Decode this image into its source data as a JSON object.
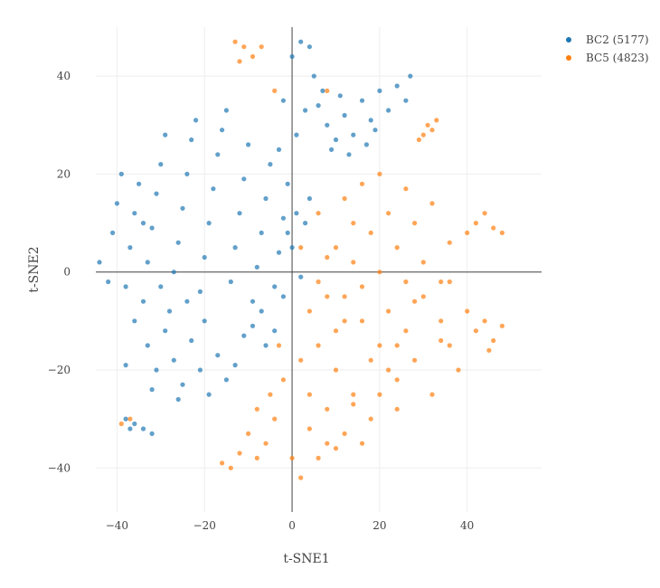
{
  "chart_data": {
    "type": "scatter",
    "xlabel": "t-SNE1",
    "ylabel": "t-SNE2",
    "xlim": [
      -50,
      57
    ],
    "ylim": [
      -49,
      50
    ],
    "x_ticks": [
      -40,
      -20,
      0,
      20,
      40
    ],
    "y_ticks": [
      -40,
      -20,
      0,
      20,
      40
    ],
    "x_tick_labels": [
      "−40",
      "−20",
      "0",
      "20",
      "40"
    ],
    "y_tick_labels": [
      "−40",
      "−20",
      "0",
      "20",
      "40"
    ],
    "grid": true,
    "zero_lines": true,
    "legend_position": "top-right",
    "series": [
      {
        "name": "BC2 (5177)",
        "color": "#1f77b4",
        "points": [
          [
            -44,
            2
          ],
          [
            -42,
            -2
          ],
          [
            -41,
            8
          ],
          [
            -40,
            14
          ],
          [
            -39,
            20
          ],
          [
            -38,
            -3
          ],
          [
            -37,
            5
          ],
          [
            -36,
            12
          ],
          [
            -35,
            18
          ],
          [
            -34,
            -6
          ],
          [
            -33,
            2
          ],
          [
            -32,
            9
          ],
          [
            -31,
            16
          ],
          [
            -30,
            22
          ],
          [
            -29,
            28
          ],
          [
            -28,
            -8
          ],
          [
            -27,
            0
          ],
          [
            -26,
            6
          ],
          [
            -25,
            13
          ],
          [
            -24,
            20
          ],
          [
            -23,
            27
          ],
          [
            -22,
            31
          ],
          [
            -21,
            -4
          ],
          [
            -20,
            3
          ],
          [
            -19,
            10
          ],
          [
            -18,
            17
          ],
          [
            -17,
            24
          ],
          [
            -16,
            29
          ],
          [
            -15,
            33
          ],
          [
            -14,
            -2
          ],
          [
            -13,
            5
          ],
          [
            -12,
            12
          ],
          [
            -11,
            19
          ],
          [
            -10,
            26
          ],
          [
            -9,
            -6
          ],
          [
            -8,
            1
          ],
          [
            -7,
            8
          ],
          [
            -6,
            15
          ],
          [
            -5,
            22
          ],
          [
            -4,
            -3
          ],
          [
            -3,
            4
          ],
          [
            -2,
            11
          ],
          [
            -1,
            18
          ],
          [
            0,
            5
          ],
          [
            1,
            12
          ],
          [
            2,
            -1
          ],
          [
            3,
            10
          ],
          [
            4,
            15
          ],
          [
            -33,
            -15
          ],
          [
            -31,
            -20
          ],
          [
            -29,
            -12
          ],
          [
            -27,
            -18
          ],
          [
            -25,
            -23
          ],
          [
            -23,
            -14
          ],
          [
            -21,
            -20
          ],
          [
            -19,
            -25
          ],
          [
            -17,
            -17
          ],
          [
            -15,
            -22
          ],
          [
            -13,
            -19
          ],
          [
            -11,
            -13
          ],
          [
            -9,
            -11
          ],
          [
            -7,
            -8
          ],
          [
            -36,
            -10
          ],
          [
            -38,
            -19
          ],
          [
            -32,
            -24
          ],
          [
            -26,
            -26
          ],
          [
            -20,
            -10
          ],
          [
            -24,
            -6
          ],
          [
            -30,
            -3
          ],
          [
            -34,
            10
          ],
          [
            -6,
            -15
          ],
          [
            -4,
            -12
          ],
          [
            -2,
            -5
          ],
          [
            -1,
            8
          ],
          [
            -3,
            25
          ],
          [
            -2,
            35
          ],
          [
            0,
            44
          ],
          [
            2,
            47
          ],
          [
            4,
            46
          ],
          [
            5,
            40
          ],
          [
            3,
            33
          ],
          [
            1,
            28
          ],
          [
            6,
            34
          ],
          [
            8,
            30
          ],
          [
            10,
            27
          ],
          [
            12,
            32
          ],
          [
            14,
            28
          ],
          [
            16,
            35
          ],
          [
            18,
            31
          ],
          [
            20,
            37
          ],
          [
            22,
            33
          ],
          [
            24,
            38
          ],
          [
            26,
            35
          ],
          [
            27,
            40
          ],
          [
            11,
            36
          ],
          [
            9,
            25
          ],
          [
            13,
            24
          ],
          [
            17,
            26
          ],
          [
            7,
            37
          ],
          [
            19,
            29
          ],
          [
            -38,
            -30
          ],
          [
            -36,
            -31
          ],
          [
            -34,
            -32
          ],
          [
            -32,
            -33
          ],
          [
            -37,
            -32
          ]
        ]
      },
      {
        "name": "BC5 (4823)",
        "color": "#ff7f0e",
        "points": [
          [
            -13,
            47
          ],
          [
            -11,
            46
          ],
          [
            -9,
            44
          ],
          [
            -12,
            43
          ],
          [
            -7,
            46
          ],
          [
            -4,
            37
          ],
          [
            8,
            37
          ],
          [
            4,
            -8
          ],
          [
            6,
            -15
          ],
          [
            8,
            -5
          ],
          [
            10,
            -20
          ],
          [
            12,
            -10
          ],
          [
            14,
            -25
          ],
          [
            16,
            -3
          ],
          [
            18,
            -30
          ],
          [
            20,
            -15
          ],
          [
            22,
            -8
          ],
          [
            24,
            -22
          ],
          [
            26,
            -12
          ],
          [
            28,
            -18
          ],
          [
            30,
            -5
          ],
          [
            32,
            -25
          ],
          [
            34,
            -10
          ],
          [
            36,
            -15
          ],
          [
            38,
            -20
          ],
          [
            10,
            5
          ],
          [
            12,
            15
          ],
          [
            14,
            10
          ],
          [
            16,
            18
          ],
          [
            18,
            8
          ],
          [
            20,
            20
          ],
          [
            22,
            12
          ],
          [
            24,
            5
          ],
          [
            26,
            17
          ],
          [
            28,
            10
          ],
          [
            30,
            2
          ],
          [
            32,
            14
          ],
          [
            34,
            -2
          ],
          [
            36,
            6
          ],
          [
            40,
            -8
          ],
          [
            42,
            -12
          ],
          [
            44,
            -10
          ],
          [
            46,
            -14
          ],
          [
            48,
            -11
          ],
          [
            45,
            -16
          ],
          [
            -2,
            -22
          ],
          [
            -4,
            -30
          ],
          [
            -6,
            -35
          ],
          [
            -8,
            -38
          ],
          [
            -10,
            -33
          ],
          [
            -12,
            -37
          ],
          [
            -14,
            -40
          ],
          [
            -16,
            -39
          ],
          [
            0,
            -38
          ],
          [
            2,
            -42
          ],
          [
            4,
            -32
          ],
          [
            6,
            -38
          ],
          [
            8,
            -28
          ],
          [
            10,
            -36
          ],
          [
            12,
            -33
          ],
          [
            14,
            -27
          ],
          [
            16,
            -35
          ],
          [
            2,
            -18
          ],
          [
            4,
            -25
          ],
          [
            -3,
            -15
          ],
          [
            6,
            -2
          ],
          [
            8,
            3
          ],
          [
            2,
            5
          ],
          [
            30,
            28
          ],
          [
            31,
            30
          ],
          [
            32,
            29
          ],
          [
            33,
            31
          ],
          [
            29,
            27
          ],
          [
            40,
            8
          ],
          [
            42,
            10
          ],
          [
            44,
            12
          ],
          [
            46,
            9
          ],
          [
            48,
            8
          ],
          [
            20,
            -25
          ],
          [
            22,
            -20
          ],
          [
            24,
            -28
          ],
          [
            18,
            -18
          ],
          [
            26,
            -2
          ],
          [
            14,
            2
          ],
          [
            10,
            -12
          ],
          [
            12,
            -5
          ],
          [
            28,
            -6
          ],
          [
            24,
            -15
          ],
          [
            16,
            -10
          ],
          [
            20,
            0
          ],
          [
            6,
            12
          ],
          [
            8,
            -35
          ],
          [
            -5,
            -25
          ],
          [
            -8,
            -28
          ],
          [
            34,
            -14
          ],
          [
            36,
            -2
          ],
          [
            -39,
            -31
          ],
          [
            -37,
            -30
          ]
        ]
      }
    ]
  }
}
